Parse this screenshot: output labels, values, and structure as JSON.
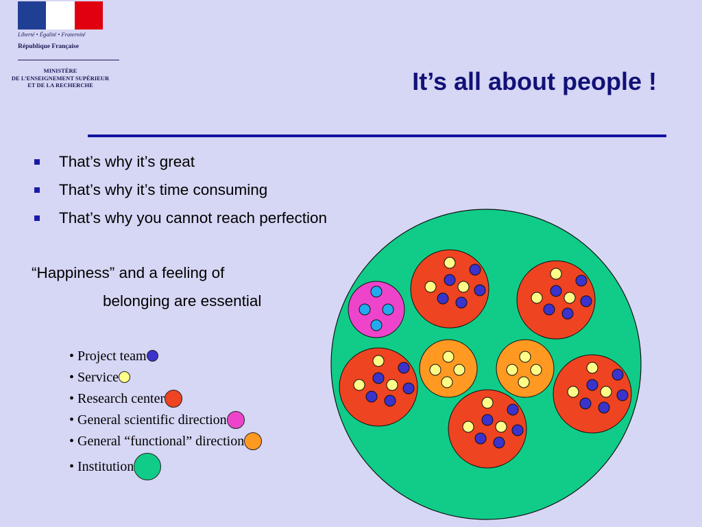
{
  "header": {
    "motto": "Liberté • Égalité • Fraternité",
    "republique": "République Française",
    "ministere": [
      "MINISTÈRE",
      "DE L’ENSEIGNEMENT SUPÉRIEUR",
      "ET DE LA RECHERCHE"
    ]
  },
  "slide": {
    "title": "It’s all about people !",
    "bullets": [
      "That’s why it’s great",
      "That’s why it’s time consuming",
      "That’s why you cannot reach perfection"
    ],
    "happiness_line1": "“Happiness” and a feeling of",
    "happiness_line2": "belonging are essential",
    "legend": [
      {
        "label": "• Project team",
        "color": "#3a33cc",
        "shape": "small"
      },
      {
        "label": "• Service",
        "color": "#ffff88",
        "shape": "small"
      },
      {
        "label": "• Research center",
        "color": "#ee4422",
        "shape": "medium"
      },
      {
        "label": "• General scientific direction",
        "color": "#ee44cc",
        "shape": "medium"
      },
      {
        "label": "• General “functional” direction",
        "color": "#ff9922",
        "shape": "medium"
      },
      {
        "label": "• Institution",
        "color": "#11cc88",
        "shape": "large"
      }
    ]
  },
  "colors": {
    "background": "#d6d6f5",
    "title": "#111177",
    "rule": "#1212a0",
    "institution": "#11cc88",
    "research_center": "#ee4422",
    "scientific_direction": "#ee44cc",
    "functional_direction": "#ff9922",
    "service": "#ffff88",
    "project_team": "#3a33cc",
    "scientific_inner": "#22aaee"
  }
}
